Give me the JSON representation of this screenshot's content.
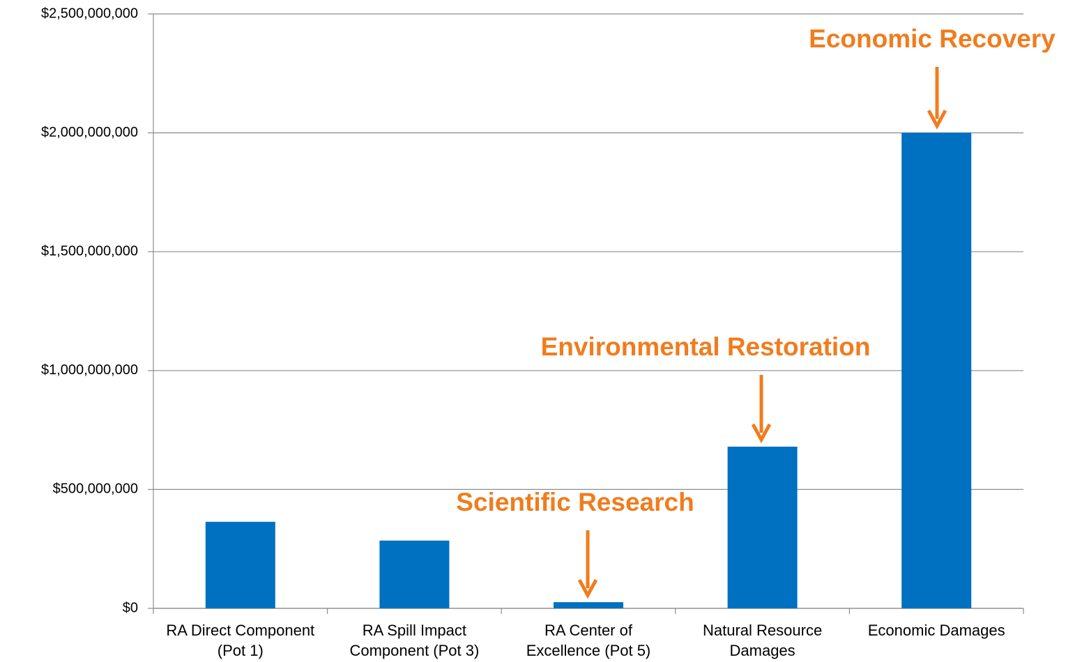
{
  "chart_data": {
    "type": "bar",
    "categories": [
      "RA Direct Component (Pot 1)",
      "RA Spill Impact Component (Pot 3)",
      "RA Center of Excellence (Pot 5)",
      "Natural Resource Damages",
      "Economic Damages"
    ],
    "values": [
      364000000,
      285000000,
      26000000,
      680000000,
      2000000000
    ],
    "color": "#0070c0",
    "ylim": [
      0,
      2500000000
    ],
    "yticks": [
      {
        "value": 0,
        "label": "$0"
      },
      {
        "value": 500000000,
        "label": "$500,000,000"
      },
      {
        "value": 1000000000,
        "label": "$1,000,000,000"
      },
      {
        "value": 1500000000,
        "label": "$1,500,000,000"
      },
      {
        "value": 2000000000,
        "label": "$2,000,000,000"
      },
      {
        "value": 2500000000,
        "label": "$2,500,000,000"
      }
    ],
    "grid": true,
    "annotations": [
      {
        "text": "Scientific Research",
        "color": "#f07c1e"
      },
      {
        "text": "Environmental Restoration",
        "color": "#f07c1e"
      },
      {
        "text": "Economic Recovery",
        "color": "#f07c1e"
      }
    ]
  }
}
